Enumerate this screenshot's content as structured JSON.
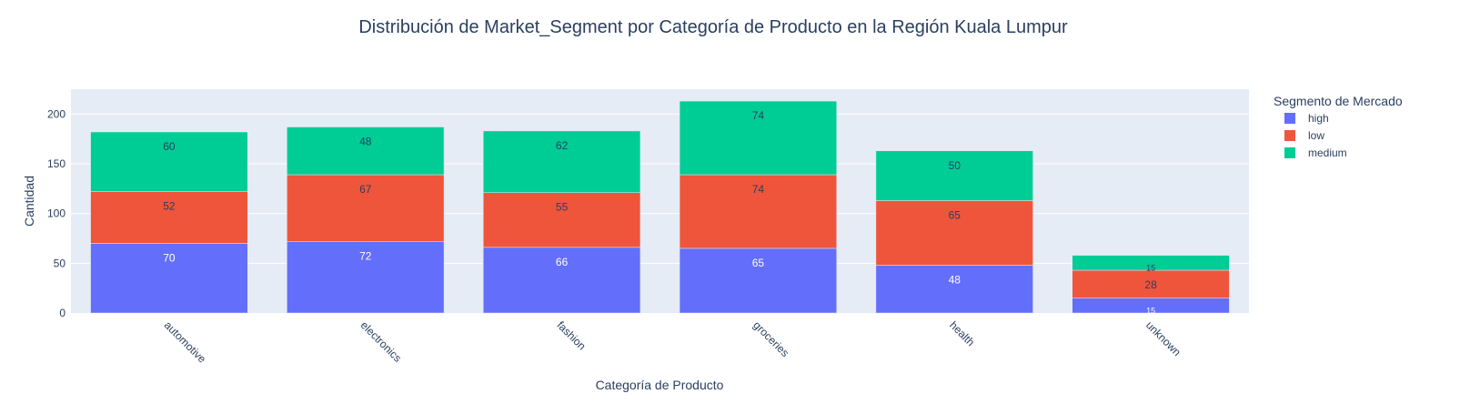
{
  "chart_data": {
    "type": "bar",
    "barmode": "stack",
    "title": "Distribución de Market_Segment por Categoría de Producto en la Región Kuala Lumpur",
    "xlabel": "Categoría de Producto",
    "ylabel": "Cantidad",
    "categories": [
      "automotive",
      "electronics",
      "fashion",
      "groceries",
      "health",
      "unknown"
    ],
    "series": [
      {
        "name": "high",
        "color": "#636efa",
        "values": [
          70,
          72,
          66,
          65,
          48,
          15
        ]
      },
      {
        "name": "low",
        "color": "#ef553b",
        "values": [
          52,
          67,
          55,
          74,
          65,
          28
        ]
      },
      {
        "name": "medium",
        "color": "#00cc96",
        "values": [
          60,
          48,
          62,
          74,
          50,
          15
        ]
      }
    ],
    "ylim": [
      0,
      225
    ],
    "yticks": [
      0,
      50,
      100,
      150,
      200
    ],
    "grid": true,
    "legend": {
      "title": "Segmento de Mercado",
      "placement": "top-right"
    }
  }
}
